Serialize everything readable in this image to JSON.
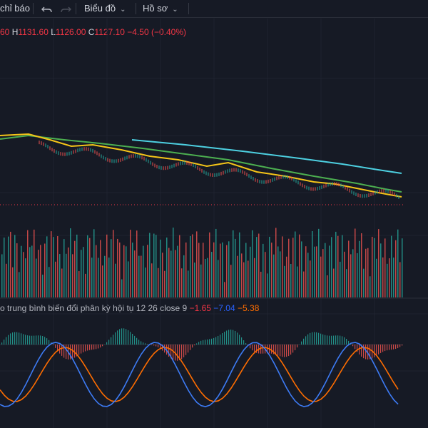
{
  "toolbar": {
    "indicators_label": "chỉ báo",
    "chart_label": "Biểu đồ",
    "profile_label": "Hồ sơ",
    "undo_icon": "undo-icon",
    "redo_icon": "redo-icon"
  },
  "ohlc": {
    "open_fragment": "60",
    "h_key": "H",
    "h_val": "1131.60",
    "l_key": "L",
    "l_val": "1126.00",
    "c_key": "C",
    "c_val": "1127.10",
    "change": "−4.50 (−0.40%)"
  },
  "macd": {
    "title": "o trung bình biến đổi phân kỳ hội tụ",
    "params": "12 26 close 9",
    "v1": "−1.65",
    "v2": "−7.04",
    "v3": "−5.38"
  },
  "colors": {
    "background": "#161a25",
    "up": "#26a69a",
    "down": "#ef5350",
    "ma_yellow": "#f5c518",
    "ma_green": "#4caf50",
    "ma_cyan": "#4dd0e1",
    "macd_blue": "#2962ff",
    "signal_orange": "#ff6d00"
  }
}
